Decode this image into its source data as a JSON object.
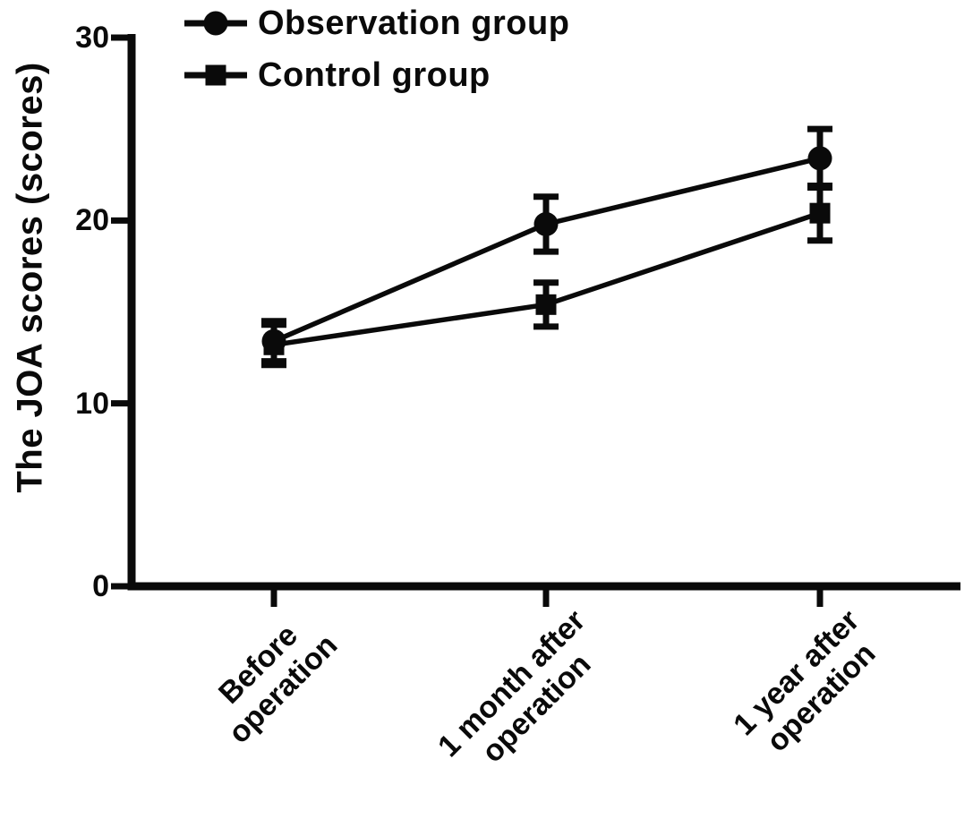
{
  "figure": {
    "background": "#ffffff",
    "ink_color": "#0a0a0a"
  },
  "chart_data": {
    "type": "line",
    "title": "",
    "xlabel": "",
    "ylabel": "The JOA scores (scores)",
    "ylim": [
      0,
      30
    ],
    "yticks": [
      0,
      10,
      20,
      30
    ],
    "grid": false,
    "legend_position": "top-left",
    "categories": [
      "Before operation",
      "1 month after operation",
      "1 year after operation"
    ],
    "x_tick_lines": [
      [
        "Before",
        "operation"
      ],
      [
        "1 month after",
        "operation"
      ],
      [
        "1 year after",
        "operation"
      ]
    ],
    "series": [
      {
        "name": "Observation group",
        "marker": "circle",
        "values": [
          13.4,
          19.8,
          23.4
        ],
        "errors": [
          1.1,
          1.5,
          1.6
        ]
      },
      {
        "name": "Control group",
        "marker": "square",
        "values": [
          13.2,
          15.4,
          20.4
        ],
        "errors": [
          1.1,
          1.2,
          1.5
        ]
      }
    ]
  }
}
